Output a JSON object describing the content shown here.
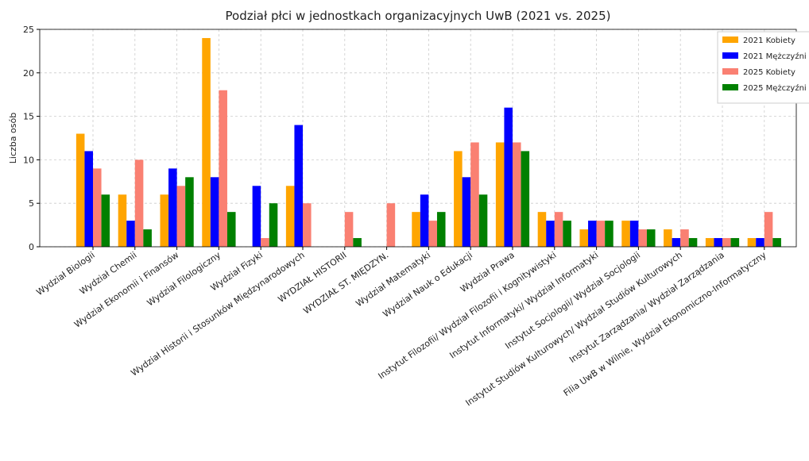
{
  "chart_data": {
    "type": "bar",
    "title": "Podział płci w jednostkach organizacyjnych UwB (2021 vs. 2025)",
    "y_label": "Liczba osób",
    "categories": [
      "Wydział Biologii",
      "Wydział Chemii",
      "Wydział Ekonomii i Finansów",
      "Wydział Filologiczny",
      "Wydział Fizyki",
      "Wydział Historii i Stosunków Międzynarodowych",
      "WYDZIAŁ HISTORII",
      "WYDZIAŁ ST. MIĘDZYN.",
      "Wydział Matematyki",
      "Wydział Nauk o Edukacji",
      "Wydział Prawa",
      "Instytut Filozofii/ Wydział Filozofii i Kognitywistyki",
      "Instytut Informatyki/ Wydział Informatyki",
      "Instytut Socjologii/ Wydział Socjologii",
      "Instytut Studiów Kulturowych/ Wydział Studiów Kulturowych",
      "Instytut Zarządzania/ Wydział Zarządzania",
      "Filia UwB w Wilnie, Wydział Ekonomiczno-Informatyczny"
    ],
    "series": [
      {
        "name": "2021 Kobiety",
        "color": "#ffa500",
        "values": [
          13,
          6,
          6,
          24,
          0,
          7,
          0,
          0,
          4,
          11,
          12,
          4,
          2,
          3,
          2,
          1,
          1
        ]
      },
      {
        "name": "2021 Mężczyźni",
        "color": "#0000ff",
        "values": [
          11,
          3,
          9,
          8,
          7,
          14,
          0,
          0,
          6,
          8,
          16,
          3,
          3,
          3,
          1,
          1,
          1
        ]
      },
      {
        "name": "2025 Kobiety",
        "color": "#fa8072",
        "values": [
          9,
          10,
          7,
          18,
          1,
          5,
          4,
          5,
          3,
          12,
          12,
          4,
          3,
          2,
          2,
          1,
          4
        ]
      },
      {
        "name": "2025 Mężczyźni",
        "color": "#008000",
        "values": [
          6,
          2,
          8,
          4,
          5,
          0,
          1,
          0,
          4,
          6,
          11,
          3,
          3,
          2,
          1,
          1,
          1
        ]
      }
    ],
    "ylim": [
      0,
      25
    ],
    "yticks": [
      0,
      5,
      10,
      15,
      20,
      25
    ],
    "grid": true,
    "legend": "upper right"
  }
}
